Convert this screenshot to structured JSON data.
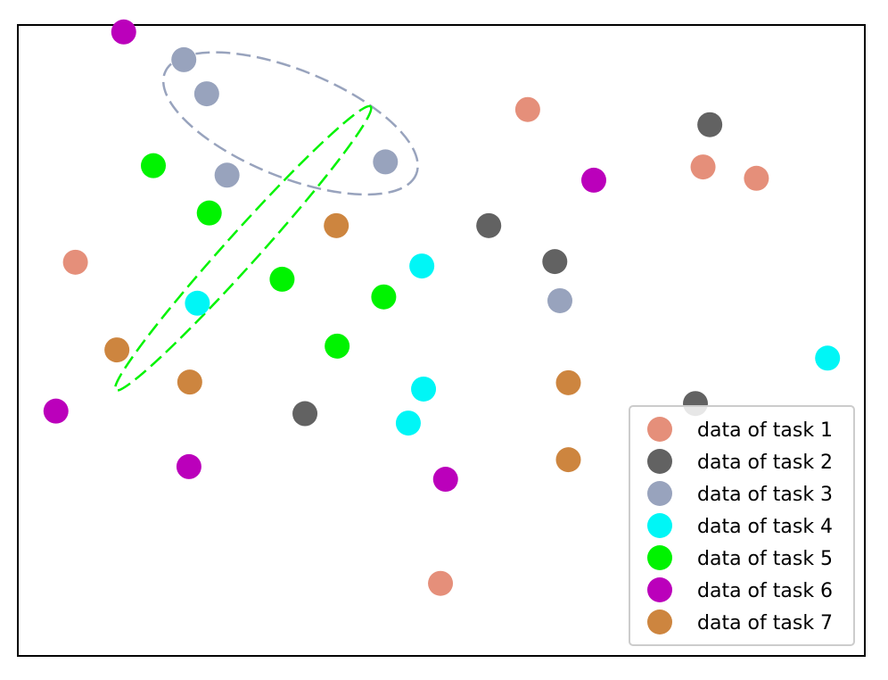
{
  "chart_data": {
    "type": "scatter",
    "title": "",
    "xlabel": "",
    "ylabel": "",
    "xlim": [
      0,
      100
    ],
    "ylim": [
      0,
      100
    ],
    "grid": false,
    "axes_ticks": false,
    "legend_position": "lower-right",
    "series": [
      {
        "name": "data of task 1",
        "color": "#e58f7a",
        "points": [
          {
            "x": 6.8,
            "y": 62.4
          },
          {
            "x": 60.2,
            "y": 86.6
          },
          {
            "x": 80.9,
            "y": 77.5
          },
          {
            "x": 87.2,
            "y": 75.7
          },
          {
            "x": 49.9,
            "y": 11.5
          }
        ]
      },
      {
        "name": "data of task 2",
        "color": "#626262",
        "points": [
          {
            "x": 81.7,
            "y": 84.2
          },
          {
            "x": 55.6,
            "y": 68.2
          },
          {
            "x": 63.4,
            "y": 62.5
          },
          {
            "x": 80.0,
            "y": 40.0
          },
          {
            "x": 33.9,
            "y": 38.4
          }
        ]
      },
      {
        "name": "data of task 3",
        "color": "#98a3bd",
        "points": [
          {
            "x": 19.6,
            "y": 94.5
          },
          {
            "x": 22.3,
            "y": 89.1
          },
          {
            "x": 24.7,
            "y": 76.2
          },
          {
            "x": 43.4,
            "y": 78.3
          },
          {
            "x": 64.0,
            "y": 56.3
          }
        ]
      },
      {
        "name": "data of task 4",
        "color": "#00f6f6",
        "points": [
          {
            "x": 47.7,
            "y": 61.8
          },
          {
            "x": 21.2,
            "y": 55.9
          },
          {
            "x": 47.9,
            "y": 42.3
          },
          {
            "x": 46.1,
            "y": 36.9
          },
          {
            "x": 95.6,
            "y": 47.2
          }
        ]
      },
      {
        "name": "data of task 5",
        "color": "#00f300",
        "points": [
          {
            "x": 16.0,
            "y": 77.7
          },
          {
            "x": 22.6,
            "y": 70.2
          },
          {
            "x": 31.2,
            "y": 59.7
          },
          {
            "x": 43.2,
            "y": 56.9
          },
          {
            "x": 37.7,
            "y": 49.1
          }
        ]
      },
      {
        "name": "data of task 6",
        "color": "#bb00bb",
        "points": [
          {
            "x": 12.5,
            "y": 98.9
          },
          {
            "x": 68.0,
            "y": 75.4
          },
          {
            "x": 4.5,
            "y": 38.8
          },
          {
            "x": 20.2,
            "y": 30.0
          },
          {
            "x": 50.5,
            "y": 28.0
          }
        ]
      },
      {
        "name": "data of task 7",
        "color": "#cd853f",
        "points": [
          {
            "x": 37.6,
            "y": 68.2
          },
          {
            "x": 11.7,
            "y": 48.5
          },
          {
            "x": 20.3,
            "y": 43.4
          },
          {
            "x": 65.0,
            "y": 43.3
          },
          {
            "x": 65.0,
            "y": 31.1
          }
        ]
      }
    ],
    "annotations": [
      {
        "type": "dashed-ellipse",
        "series": "data of task 3",
        "color": "#98a3bd",
        "cx": 32.2,
        "cy": 84.4,
        "rx": 16.0,
        "ry": 8.5,
        "rotation_deg": -22
      },
      {
        "type": "dashed-ellipse",
        "series": "data of task 5",
        "color": "#00f300",
        "cx": 26.6,
        "cy": 64.6,
        "rx": 22.5,
        "ry": 2.6,
        "rotation_deg": 48
      }
    ]
  }
}
